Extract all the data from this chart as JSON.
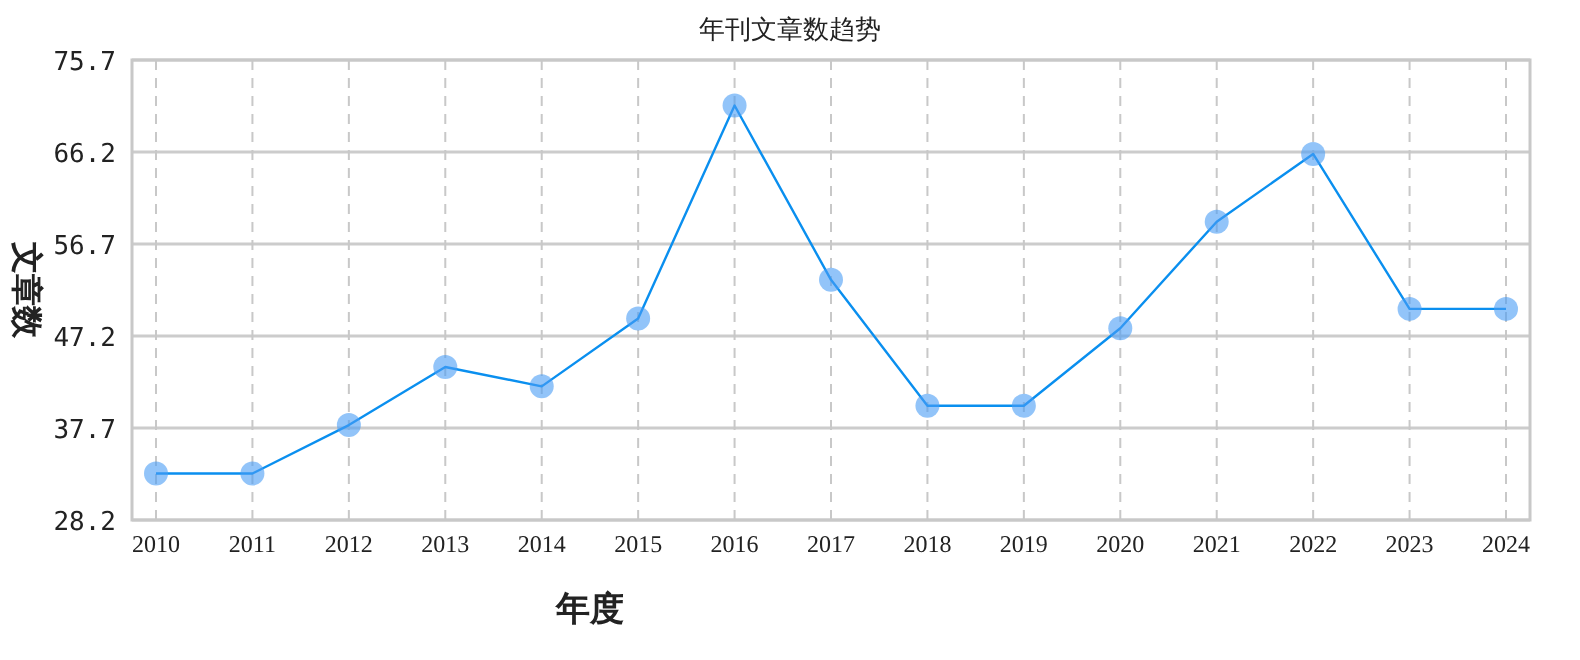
{
  "chart_data": {
    "type": "line",
    "title": "年刊文章数趋势",
    "xlabel": "年度",
    "ylabel": "文章数",
    "categories": [
      "2010",
      "2011",
      "2012",
      "2013",
      "2014",
      "2015",
      "2016",
      "2017",
      "2018",
      "2019",
      "2020",
      "2021",
      "2022",
      "2023",
      "2024"
    ],
    "series": [
      {
        "color": "#0a8fef",
        "values": [
          33,
          33,
          38,
          44,
          42,
          49,
          71,
          53,
          40,
          40,
          48,
          59,
          66,
          50,
          50
        ]
      }
    ],
    "marker": "circle",
    "grid": true,
    "ylim": [
      28.2,
      75.7
    ],
    "yticks": [
      28.2,
      37.7,
      47.2,
      56.7,
      66.2,
      75.7
    ]
  }
}
